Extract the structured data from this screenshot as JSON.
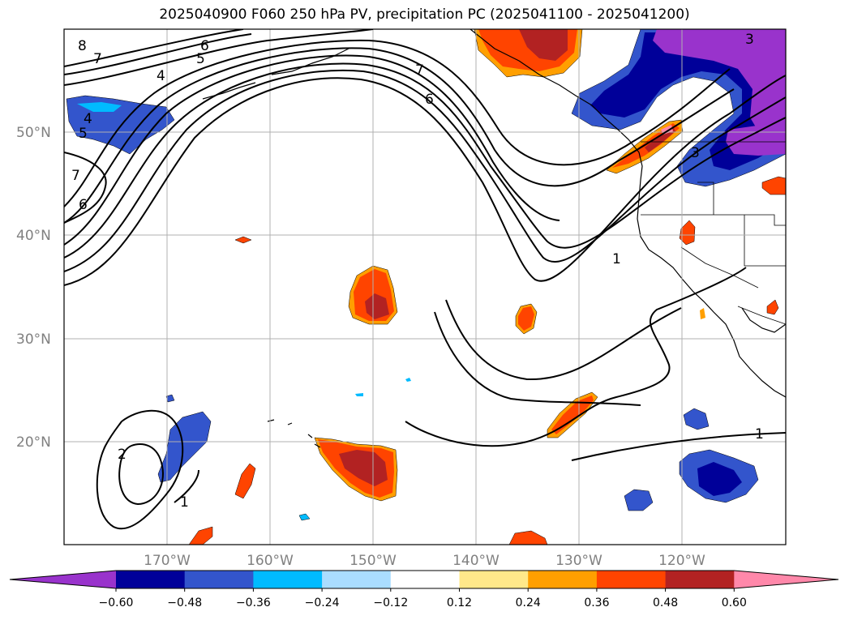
{
  "title": "2025040900 F060 250 hPa PV, precipitation PC (2025041100 - 2025041200)",
  "latitude_labels": [
    "50°N",
    "40°N",
    "30°N",
    "20°N"
  ],
  "longitude_labels": [
    "170°W",
    "160°W",
    "150°W",
    "140°W",
    "130°W",
    "120°W"
  ],
  "contour_labels": [
    "8",
    "7",
    "6",
    "5",
    "4",
    "4",
    "5",
    "7",
    "6",
    "7",
    "6",
    "3",
    "3",
    "1",
    "1",
    "2",
    "1"
  ],
  "colorbar": {
    "tick_labels": [
      "−0.60",
      "−0.48",
      "−0.36",
      "−0.24",
      "−0.12",
      "0.12",
      "0.24",
      "0.36",
      "0.48",
      "0.60"
    ],
    "colors": [
      "#9933cc",
      "#000099",
      "#3355cc",
      "#00bbff",
      "#aaddff",
      "#ffffff",
      "#ffe88a",
      "#ff9f00",
      "#ff4400",
      "#b22222",
      "#ff88aa"
    ]
  }
}
